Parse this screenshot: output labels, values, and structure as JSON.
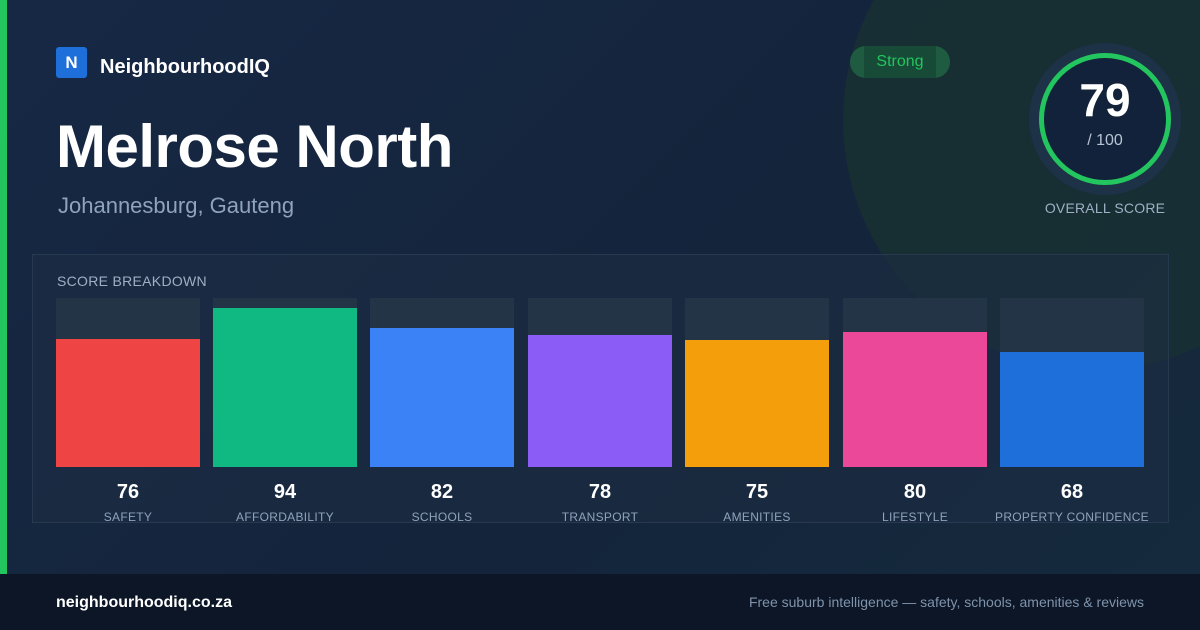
{
  "brand": {
    "logo_letter": "N",
    "name": "NeighbourhoodIQ"
  },
  "suburb": {
    "name": "Melrose North",
    "location": "Johannesburg, Gauteng"
  },
  "rating": {
    "label": "Strong",
    "color": "#22c55e"
  },
  "overall": {
    "score": "79",
    "max": "/ 100",
    "caption": "OVERALL SCORE",
    "ring_color": "#22c55e"
  },
  "breakdown": {
    "title": "SCORE BREAKDOWN",
    "max_score": 100,
    "items": [
      {
        "label": "SAFETY",
        "score": 76,
        "color": "#ef4444"
      },
      {
        "label": "AFFORDABILITY",
        "score": 94,
        "color": "#10b981"
      },
      {
        "label": "SCHOOLS",
        "score": 82,
        "color": "#3b82f6"
      },
      {
        "label": "TRANSPORT",
        "score": 78,
        "color": "#8b5cf6"
      },
      {
        "label": "AMENITIES",
        "score": 75,
        "color": "#f59e0b"
      },
      {
        "label": "LIFESTYLE",
        "score": 80,
        "color": "#ec4899"
      },
      {
        "label": "PROPERTY CONFIDENCE",
        "score": 68,
        "color": "#1e6fd9"
      }
    ]
  },
  "footer": {
    "url": "neighbourhoodiq.co.za",
    "tagline": "Free suburb intelligence — safety, schools, amenities & reviews"
  },
  "colors": {
    "accent": "#22c55e",
    "background": "#15243a",
    "brand_blue": "#1e6fd9"
  }
}
